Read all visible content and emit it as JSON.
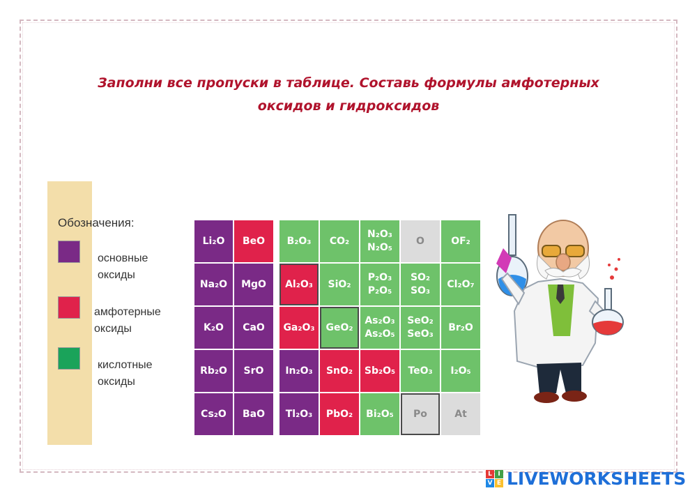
{
  "title_lines": [
    "Заполни все пропуски в таблице. Составь формулы амфотерных",
    "оксидов и гидроксидов"
  ],
  "legend": {
    "heading": "Обозначения:",
    "items": [
      {
        "color": "#7a2a86",
        "line1": "основные",
        "line2": "оксиды"
      },
      {
        "color": "#e0224b",
        "line1": "амфотерные",
        "line2": "оксиды"
      },
      {
        "color": "#1aa35a",
        "line1": "кислотные",
        "line2": "оксиды"
      }
    ]
  },
  "left_table": [
    [
      {
        "f": "Li₂O",
        "c": "purple"
      },
      {
        "f": "BeO",
        "c": "red"
      }
    ],
    [
      {
        "f": "Na₂O",
        "c": "purple"
      },
      {
        "f": "MgO",
        "c": "purple"
      }
    ],
    [
      {
        "f": "K₂O",
        "c": "purple"
      },
      {
        "f": "CaO",
        "c": "purple"
      }
    ],
    [
      {
        "f": "Rb₂O",
        "c": "purple"
      },
      {
        "f": "SrO",
        "c": "purple"
      }
    ],
    [
      {
        "f": "Cs₂O",
        "c": "purple"
      },
      {
        "f": "BaO",
        "c": "purple"
      }
    ]
  ],
  "right_table": [
    [
      {
        "f": "B₂O₃",
        "c": "green"
      },
      {
        "f": "CO₂",
        "c": "green"
      },
      {
        "f": "N₂O₃|N₂O₅",
        "c": "green"
      },
      {
        "f": "O",
        "c": "gray"
      },
      {
        "f": "OF₂",
        "c": "green"
      }
    ],
    [
      {
        "f": "Al₂O₃",
        "c": "red",
        "b": true
      },
      {
        "f": "SiO₂",
        "c": "green"
      },
      {
        "f": "P₂O₃|P₂O₅",
        "c": "green"
      },
      {
        "f": "SO₂|SO₃",
        "c": "green"
      },
      {
        "f": "Cl₂O₇",
        "c": "green"
      }
    ],
    [
      {
        "f": "Ga₂O₃",
        "c": "red"
      },
      {
        "f": "GeO₂",
        "c": "green",
        "b": true
      },
      {
        "f": "As₂O₃|As₂O₅",
        "c": "green"
      },
      {
        "f": "SeO₂|SeO₃",
        "c": "green"
      },
      {
        "f": "Br₂O",
        "c": "green"
      }
    ],
    [
      {
        "f": "In₂O₃",
        "c": "purple"
      },
      {
        "f": "SnO₂",
        "c": "red"
      },
      {
        "f": "Sb₂O₅",
        "c": "red"
      },
      {
        "f": "TeO₃",
        "c": "green"
      },
      {
        "f": "I₂O₅",
        "c": "green"
      }
    ],
    [
      {
        "f": "Tl₂O₃",
        "c": "purple"
      },
      {
        "f": "PbO₂",
        "c": "red"
      },
      {
        "f": "Bi₂O₅",
        "c": "green"
      },
      {
        "f": "Po",
        "c": "gray",
        "b": true
      },
      {
        "f": "At",
        "c": "gray"
      }
    ]
  ],
  "logo": {
    "text": "LIVEWORKSHEETS",
    "icon_letters": [
      "L",
      "I",
      "V",
      "E"
    ],
    "icon_colors": [
      "#e53935",
      "#43a047",
      "#1e88e5",
      "#fbc02d"
    ]
  }
}
